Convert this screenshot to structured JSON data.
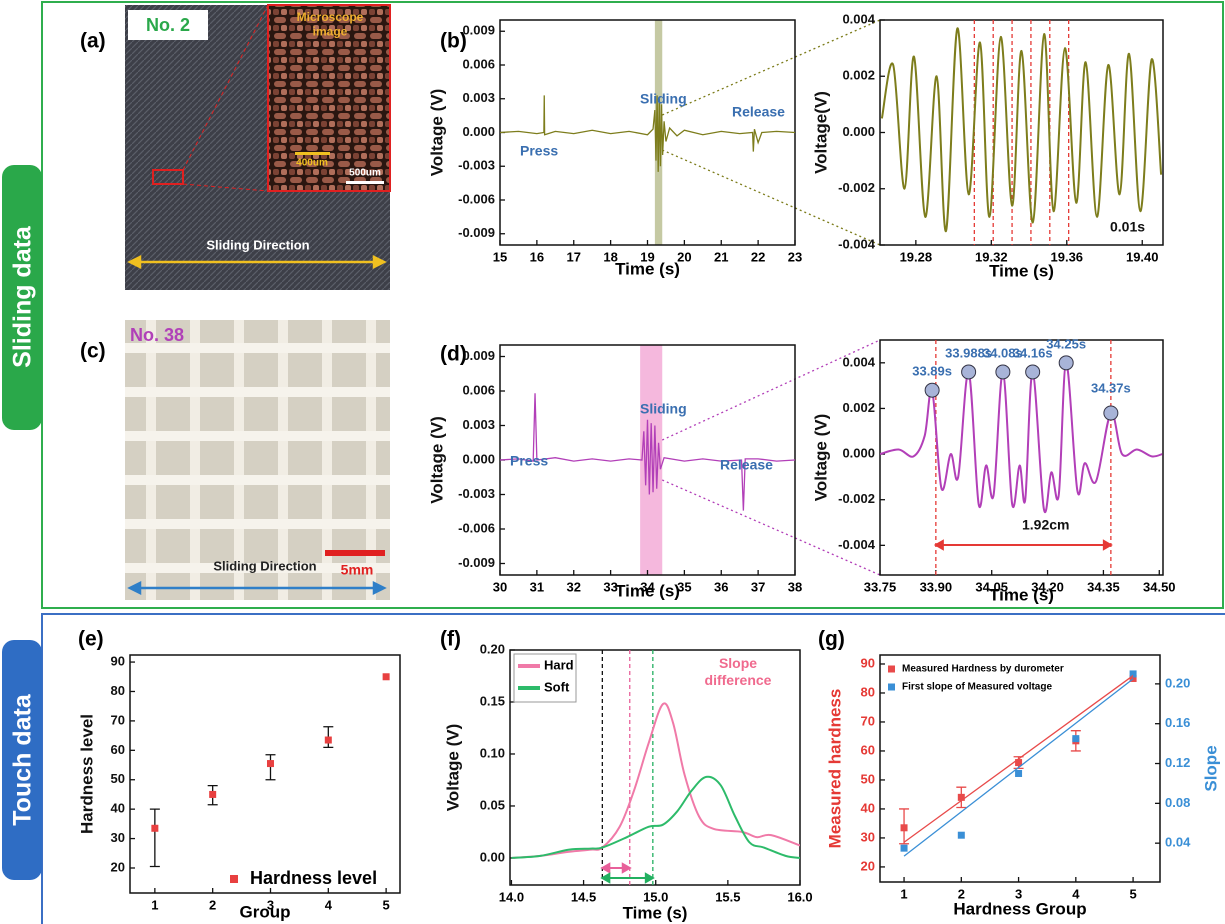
{
  "sections": [
    "Sliding data",
    "Touch data"
  ],
  "photos": [
    {
      "panel": "(a)",
      "tag": "No. 2",
      "inset": "Microscope image",
      "inset_scale": "400um",
      "scale": "500um",
      "direction": "Sliding Direction"
    },
    {
      "panel": "(c)",
      "tag": "No. 38",
      "scale": "5mm",
      "direction": "Sliding Direction"
    }
  ],
  "chart_data": [
    {
      "type": "line",
      "panel": "(b)",
      "xlabel": "Time (s)",
      "ylabel": "Voltage (V)",
      "xlim": [
        15,
        23
      ],
      "ylim": [
        -0.01,
        0.01
      ],
      "xticks": [
        15,
        16,
        17,
        18,
        19,
        20,
        21,
        22,
        23
      ],
      "yticks": [
        -0.009,
        -0.006,
        -0.003,
        {
          "value": 0,
          "label": "0.000"
        },
        0.003,
        0.006,
        0.009
      ],
      "highlight": [
        19.2,
        19.4
      ],
      "highlight_color": "#b7bb8c",
      "annotations": [
        "Press",
        "Sliding",
        "Release"
      ],
      "annotation_color": "#3a6fb0",
      "series": [
        {
          "color": "#7d7d1c",
          "x": [
            15,
            15.5,
            16.0,
            16.19,
            16.2,
            16.21,
            16.5,
            17,
            17.5,
            18,
            18.5,
            19.0,
            19.15,
            19.2,
            19.23,
            19.26,
            19.29,
            19.32,
            19.35,
            19.38,
            19.41,
            19.45,
            19.5,
            19.6,
            19.8,
            20.0,
            20.5,
            21.0,
            21.5,
            21.85,
            21.87,
            21.9,
            22.0,
            22.1,
            22.5,
            23
          ],
          "values": [
            0,
            0.0001,
            -0.0001,
            0,
            0.0033,
            -0.0002,
            0.0001,
            -0.0001,
            0.0002,
            -0.0001,
            0.0001,
            -0.0002,
            0.0003,
            0.002,
            -0.0025,
            0.0033,
            -0.0035,
            0.003,
            -0.003,
            0.0025,
            -0.002,
            0.001,
            -0.0008,
            0.0004,
            -0.0003,
            0.0002,
            -0.0002,
            0.0001,
            -0.0001,
            0,
            -0.0017,
            0.0003,
            -0.0009,
            0,
            0.0001,
            0
          ]
        }
      ]
    },
    {
      "type": "line",
      "xlabel": "Time (s)",
      "ylabel": "Voltage(V)",
      "smooth": true,
      "xlim": [
        19.261,
        19.411
      ],
      "ylim": [
        -0.004,
        0.004
      ],
      "xticks": [
        19.28,
        19.32,
        19.36,
        {
          "value": 19.4,
          "label": "19.40"
        }
      ],
      "yticks": [
        -0.004,
        -0.002,
        {
          "value": 0,
          "label": "0.000"
        },
        0.002,
        0.004
      ],
      "vlines": [
        {
          "x": 19.311,
          "color": "#e53935"
        },
        {
          "x": 19.321,
          "color": "#e53935"
        },
        {
          "x": 19.331,
          "color": "#e53935"
        },
        {
          "x": 19.341,
          "color": "#e53935"
        },
        {
          "x": 19.351,
          "color": "#e53935"
        },
        {
          "x": 19.361,
          "color": "#e53935"
        }
      ],
      "annotations": [
        "0.01s"
      ],
      "annotation_color": "#111111",
      "series": [
        {
          "color": "#7d7d1c",
          "x": [
            19.262,
            19.268,
            19.274,
            19.279,
            19.285,
            19.291,
            19.296,
            19.302,
            19.308,
            19.314,
            19.319,
            19.325,
            19.331,
            19.336,
            19.342,
            19.348,
            19.353,
            19.359,
            19.365,
            19.37,
            19.376,
            19.382,
            19.388,
            19.393,
            19.399,
            19.405,
            19.41
          ],
          "values": [
            0.0005,
            0.0024,
            -0.002,
            0.0027,
            -0.003,
            0.002,
            -0.0035,
            0.0037,
            -0.0022,
            0.0032,
            -0.003,
            0.0034,
            -0.0026,
            0.0029,
            -0.0032,
            0.0035,
            -0.0028,
            0.003,
            -0.0025,
            0.0025,
            -0.003,
            0.0024,
            -0.0022,
            0.0028,
            -0.0028,
            0.0026,
            -0.0015
          ]
        }
      ]
    },
    {
      "type": "line",
      "panel": "(d)",
      "xlabel": "Time (s)",
      "ylabel": "Voltage (V)",
      "xlim": [
        30,
        38
      ],
      "ylim": [
        -0.01,
        0.01
      ],
      "xticks": [
        30,
        31,
        32,
        33,
        34,
        35,
        36,
        37,
        38
      ],
      "yticks": [
        -0.009,
        -0.006,
        -0.003,
        {
          "value": 0,
          "label": "0.000"
        },
        0.003,
        0.006,
        0.009
      ],
      "highlight": [
        33.8,
        34.4
      ],
      "highlight_color": "#f2a6d4",
      "annotations": [
        "Press",
        "Sliding",
        "Release"
      ],
      "annotation_color": "#3a6fb0",
      "series": [
        {
          "color": "#b23fb8",
          "x": [
            30,
            30.5,
            30.9,
            30.95,
            31.0,
            31.5,
            32,
            32.5,
            33,
            33.5,
            33.85,
            33.9,
            33.95,
            34.0,
            34.05,
            34.1,
            34.15,
            34.2,
            34.25,
            34.3,
            34.35,
            34.45,
            35,
            35.5,
            36,
            36.55,
            36.6,
            36.65,
            37,
            37.5,
            38
          ],
          "values": [
            0,
            0.0001,
            -0.0001,
            0.0058,
            0,
            0.0002,
            -0.0001,
            0.0001,
            -0.0001,
            0.0001,
            0,
            0.0025,
            -0.0022,
            0.0035,
            -0.003,
            0.0032,
            -0.0028,
            0.003,
            -0.0025,
            0.0015,
            -0.0008,
            0.0002,
            -0.0001,
            0.0001,
            -0.0001,
            0,
            -0.0044,
            0.0001,
            0.0001,
            -0.0001,
            0
          ]
        }
      ]
    },
    {
      "type": "line",
      "xlabel": "Time (s)",
      "ylabel": "Voltage (V)",
      "smooth": true,
      "xlim": [
        33.75,
        34.51
      ],
      "ylim": [
        -0.0053,
        0.005
      ],
      "xticks": [
        33.75,
        {
          "value": 33.9,
          "label": "33.90"
        },
        34.05,
        {
          "value": 34.2,
          "label": "34.20"
        },
        34.35,
        {
          "value": 34.5,
          "label": "34.50"
        }
      ],
      "yticks": [
        -0.004,
        -0.002,
        {
          "value": 0,
          "label": "0.000"
        },
        0.002,
        0.004
      ],
      "vlines": [
        {
          "x": 33.9,
          "color": "#e53935"
        },
        {
          "x": 34.37,
          "color": "#e53935"
        }
      ],
      "span_arrows": true,
      "annotations": [
        "1.92cm"
      ],
      "annotation_color": "#111111",
      "peaks": {
        "x": [
          33.89,
          33.988,
          34.08,
          34.16,
          34.25,
          34.37
        ],
        "values": [
          0.0028,
          0.0036,
          0.0036,
          0.0036,
          0.004,
          0.0018
        ],
        "labels": [
          "33.89s",
          "33.988s",
          "34.08s",
          "34.16s",
          "34.25s",
          "34.37s"
        ],
        "color": "#3a6fb0"
      },
      "series": [
        {
          "color": "#b23fb8",
          "x": [
            33.75,
            33.8,
            33.84,
            33.87,
            33.89,
            33.915,
            33.94,
            33.96,
            33.988,
            34.015,
            34.035,
            34.055,
            34.08,
            34.105,
            34.125,
            34.14,
            34.16,
            34.19,
            34.21,
            34.23,
            34.25,
            34.28,
            34.3,
            34.33,
            34.37,
            34.4,
            34.44,
            34.48,
            34.508
          ],
          "values": [
            0,
            0.0002,
            -0.0001,
            0.0008,
            0.0028,
            -0.0015,
            0,
            -0.001,
            0.0036,
            -0.0022,
            -0.0005,
            -0.0018,
            0.0036,
            -0.0022,
            -0.0005,
            -0.002,
            0.0036,
            -0.0024,
            -0.0008,
            -0.0018,
            0.004,
            -0.0016,
            -0.0004,
            -0.0012,
            0.0018,
            0,
            0.0002,
            -0.0001,
            0
          ]
        }
      ]
    },
    {
      "type": "scatter",
      "panel": "(e)",
      "xlabel": "Group",
      "ylabel": "Hardness level",
      "xlim": [
        0.57,
        5.24
      ],
      "ylim": [
        11.5,
        92.4
      ],
      "xticks": [
        1,
        2,
        3,
        4,
        5
      ],
      "yticks": [
        20,
        30,
        40,
        50,
        60,
        70,
        80,
        90
      ],
      "legend": "lower right",
      "series": [
        {
          "name": "Hardness level",
          "color": "#e84040",
          "mode": "markers",
          "x": [
            1,
            2,
            3,
            4,
            5
          ],
          "values": [
            33.5,
            45,
            55.5,
            63.5,
            85
          ],
          "error_low": [
            13,
            3.5,
            5.5,
            2.5,
            null
          ],
          "error_high": [
            6.5,
            3,
            3,
            4.5,
            null
          ]
        }
      ]
    },
    {
      "type": "line",
      "panel": "(f)",
      "xlabel": "Time (s)",
      "ylabel": "Voltage (V)",
      "smooth": true,
      "xlim": [
        13.99,
        16.0
      ],
      "ylim": [
        -0.026,
        0.2
      ],
      "xticks": [
        {
          "value": 14,
          "label": "14.0"
        },
        14.5,
        {
          "value": 15,
          "label": "15.0"
        },
        15.5,
        {
          "value": 16,
          "label": "16.0"
        }
      ],
      "yticks": [
        {
          "value": 0,
          "label": "0.00"
        },
        0.05,
        {
          "value": 0.1,
          "label": "0.10"
        },
        0.15,
        {
          "value": 0.2,
          "label": "0.20"
        }
      ],
      "vlines": [
        {
          "x": 14.63,
          "color": "#111111"
        },
        {
          "x": 14.82,
          "color": "#e8609a"
        },
        {
          "x": 14.98,
          "color": "#22b060"
        }
      ],
      "span_arrows": true,
      "annotations": [
        "Slope difference"
      ],
      "annotation_color": "#f06a8e",
      "legend": "upper left",
      "series": [
        {
          "name": "Hard",
          "color": "#f07aa8",
          "x": [
            14.0,
            14.2,
            14.4,
            14.55,
            14.63,
            14.75,
            14.85,
            14.95,
            15.05,
            15.12,
            15.2,
            15.3,
            15.4,
            15.6,
            15.7,
            15.8,
            16.0
          ],
          "values": [
            0,
            0.002,
            0.006,
            0.008,
            0.01,
            0.03,
            0.065,
            0.11,
            0.148,
            0.13,
            0.08,
            0.04,
            0.028,
            0.025,
            0.02,
            0.022,
            0.012
          ]
        },
        {
          "name": "Soft",
          "color": "#2dbb6a",
          "x": [
            14.0,
            14.2,
            14.4,
            14.55,
            14.63,
            14.8,
            14.95,
            15.05,
            15.15,
            15.25,
            15.35,
            15.45,
            15.55,
            15.65,
            15.75,
            15.9,
            16.0
          ],
          "values": [
            0,
            0.002,
            0.008,
            0.009,
            0.01,
            0.02,
            0.03,
            0.032,
            0.045,
            0.065,
            0.078,
            0.07,
            0.04,
            0.015,
            0.01,
            0.002,
            0
          ]
        }
      ]
    },
    {
      "type": "scatter",
      "panel": "(g)",
      "xlabel": "Hardness Group",
      "ylabel": "Measured hardness",
      "ylabel_color": "#e53935",
      "y2label": "Slope",
      "y2_color": "#3a8fd6",
      "xlim": [
        0.58,
        5.47
      ],
      "ylim": [
        14.8,
        93.1
      ],
      "y2lim": [
        0.001,
        0.229
      ],
      "xticks": [
        1,
        2,
        3,
        4,
        5
      ],
      "yticks": [
        20,
        30,
        40,
        50,
        60,
        70,
        80,
        90
      ],
      "y2ticks": [
        0.04,
        0.08,
        0.12,
        0.16,
        {
          "value": 0.2,
          "label": "0.20"
        }
      ],
      "legend": "upper left",
      "series": [
        {
          "name": "Measured Hardness by durometer",
          "color": "#e84a4a",
          "mode": "markers",
          "x": [
            1,
            2,
            3,
            4,
            5
          ],
          "values": [
            33.5,
            44,
            56,
            63.5,
            85
          ],
          "error_low": [
            5.5,
            3.5,
            2,
            3.5,
            null
          ],
          "error_high": [
            6.5,
            3.5,
            2,
            3.5,
            null
          ]
        },
        {
          "name": "First slope of Measured voltage",
          "color": "#3a8fd6",
          "mode": "markers",
          "axis": "y2",
          "x": [
            1,
            2,
            3,
            4,
            5
          ],
          "values": [
            0.035,
            0.048,
            0.11,
            0.145,
            0.21
          ]
        },
        {
          "color": "#e84a4a",
          "x": [
            1,
            5
          ],
          "values": [
            28.5,
            86
          ]
        },
        {
          "color": "#3a8fd6",
          "axis": "y2",
          "x": [
            1,
            5
          ],
          "values": [
            0.027,
            0.205
          ]
        }
      ]
    }
  ]
}
